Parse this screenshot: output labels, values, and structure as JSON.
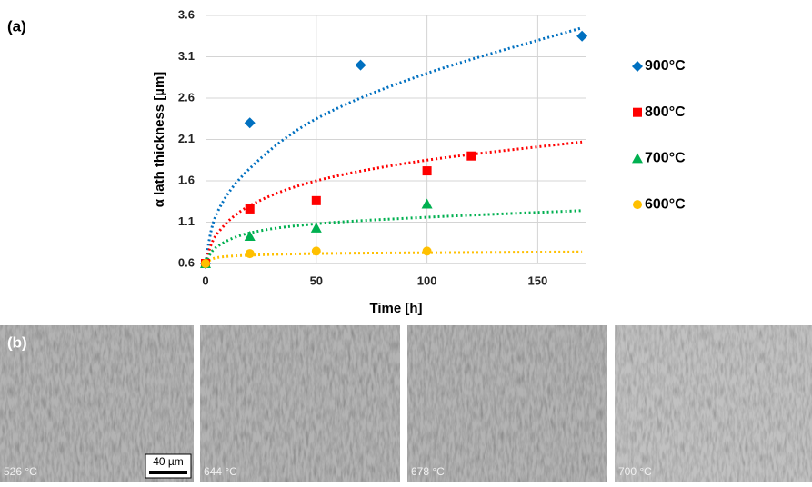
{
  "chart_data": {
    "type": "scatter",
    "x_label": "Time [h]",
    "y_label": "α lath thickness [µm]",
    "xlim": [
      0,
      172
    ],
    "ylim": [
      0.6,
      3.6
    ],
    "xticks": [
      0,
      50,
      100,
      150
    ],
    "yticks": [
      0.6,
      1.1,
      1.6,
      2.1,
      2.6,
      3.1,
      3.6
    ],
    "grid": true,
    "legend": "right",
    "trend_x": [
      0,
      5,
      20,
      50,
      100,
      170
    ],
    "series": [
      {
        "name": "900°C",
        "color": "#0070c0",
        "marker": "diamond",
        "x": [
          0,
          20,
          70,
          170
        ],
        "values": [
          0.6,
          2.3,
          3.0,
          3.35
        ],
        "trend": [
          0.6,
          1.2,
          1.75,
          2.35,
          2.9,
          3.45
        ]
      },
      {
        "name": "800°C",
        "color": "#ff0000",
        "marker": "square",
        "x": [
          0,
          20,
          50,
          100,
          120
        ],
        "values": [
          0.6,
          1.26,
          1.36,
          1.72,
          1.9
        ],
        "trend": [
          0.6,
          0.95,
          1.3,
          1.6,
          1.85,
          2.07
        ]
      },
      {
        "name": "700°C",
        "color": "#00b050",
        "marker": "triangle",
        "x": [
          0,
          20,
          50,
          100
        ],
        "values": [
          0.6,
          0.93,
          1.03,
          1.32
        ],
        "trend": [
          0.6,
          0.8,
          0.97,
          1.08,
          1.16,
          1.24
        ]
      },
      {
        "name": "600°C",
        "color": "#ffc000",
        "marker": "circle",
        "x": [
          0,
          20,
          50,
          100
        ],
        "values": [
          0.6,
          0.72,
          0.75,
          0.75
        ],
        "trend": [
          0.6,
          0.67,
          0.7,
          0.72,
          0.73,
          0.74
        ]
      }
    ]
  },
  "panels": {
    "a_label": "(a)",
    "b_label": "(b)",
    "scale_bar": "40 µm",
    "micrographs": [
      "526 °C",
      "644 °C",
      "678 °C",
      "700 °C"
    ]
  }
}
